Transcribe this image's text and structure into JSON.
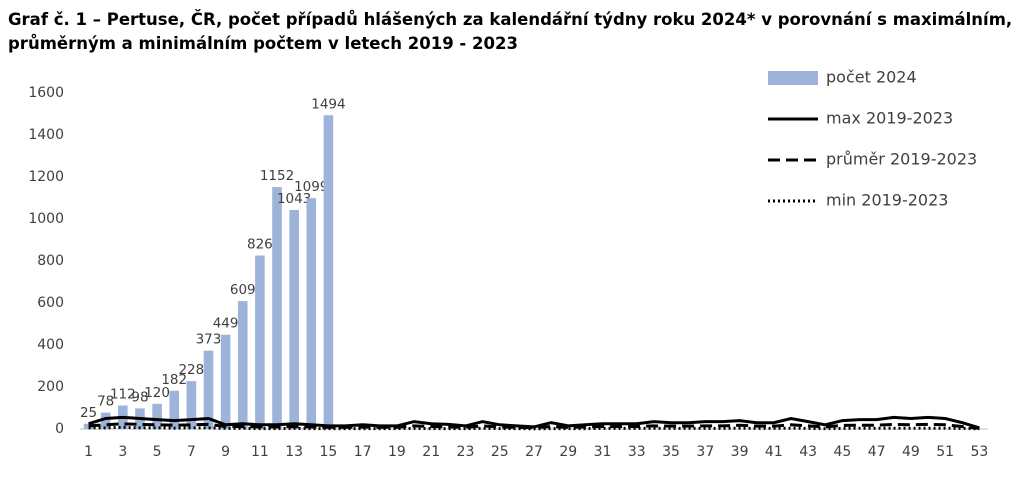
{
  "chart_data": {
    "type": "bar",
    "title": [
      "Graf č. 1 – Pertuse, ČR, počet případů hlášených za kalendářní týdny roku 2024* v porovnání s maximálním,",
      "průměrným a minimálním počtem v letech 2019 - 2023"
    ],
    "categories": [
      1,
      null,
      3,
      null,
      5,
      null,
      7,
      null,
      9,
      null,
      11,
      null,
      13,
      null,
      15,
      null,
      17,
      null,
      19,
      null,
      21,
      null,
      23,
      null,
      25,
      null,
      27,
      null,
      29,
      null,
      31,
      null,
      33,
      null,
      35,
      null,
      37,
      null,
      39,
      null,
      41,
      null,
      43,
      null,
      45,
      null,
      47,
      null,
      49,
      null,
      51,
      null,
      53
    ],
    "series": [
      {
        "name": "počet 2024",
        "color": "#9db3d9",
        "kind": "bar",
        "values": [
          25,
          78,
          112,
          98,
          120,
          182,
          228,
          373,
          449,
          609,
          826,
          1152,
          1043,
          1099,
          1494,
          null,
          null,
          null,
          null,
          null,
          null,
          null,
          null,
          null,
          null,
          null,
          null,
          null,
          null,
          null,
          null,
          null,
          null,
          null,
          null,
          null,
          null,
          null,
          null,
          null,
          null,
          null,
          null,
          null,
          null,
          null,
          null,
          null,
          null,
          null,
          null,
          null,
          null
        ]
      },
      {
        "name": "max 2019-2023",
        "color": "#000000",
        "kind": "line",
        "dash": "solid",
        "values": [
          25,
          50,
          55,
          50,
          45,
          40,
          45,
          50,
          20,
          25,
          20,
          20,
          25,
          20,
          15,
          15,
          20,
          15,
          15,
          35,
          25,
          22,
          15,
          35,
          20,
          15,
          10,
          30,
          15,
          20,
          25,
          25,
          25,
          35,
          30,
          30,
          35,
          35,
          40,
          30,
          30,
          50,
          35,
          20,
          40,
          45,
          45,
          55,
          50,
          55,
          50,
          30,
          5
        ]
      },
      {
        "name": "průměr 2019-2023",
        "color": "#000000",
        "kind": "line",
        "dash": "dashed",
        "values": [
          15,
          20,
          25,
          22,
          20,
          18,
          20,
          22,
          12,
          12,
          10,
          10,
          12,
          10,
          8,
          8,
          10,
          8,
          8,
          15,
          12,
          10,
          8,
          15,
          10,
          8,
          6,
          12,
          8,
          10,
          12,
          12,
          12,
          15,
          14,
          14,
          15,
          15,
          18,
          14,
          14,
          20,
          15,
          10,
          17,
          18,
          18,
          22,
          20,
          22,
          20,
          12,
          3
        ]
      },
      {
        "name": "min 2019-2023",
        "color": "#000000",
        "kind": "line",
        "dash": "dotted",
        "values": [
          5,
          5,
          8,
          5,
          5,
          4,
          5,
          5,
          3,
          3,
          2,
          2,
          3,
          2,
          2,
          2,
          2,
          2,
          2,
          3,
          2,
          2,
          2,
          3,
          2,
          2,
          1,
          2,
          2,
          2,
          3,
          3,
          3,
          3,
          3,
          3,
          3,
          3,
          4,
          3,
          3,
          4,
          3,
          2,
          3,
          4,
          4,
          4,
          4,
          4,
          4,
          3,
          1
        ]
      }
    ],
    "ylim": [
      0,
      1600
    ],
    "yticks": [
      0,
      200,
      400,
      600,
      800,
      1000,
      1200,
      1400,
      1600
    ],
    "grid": false,
    "legend": "top-right",
    "data_labels": true
  }
}
